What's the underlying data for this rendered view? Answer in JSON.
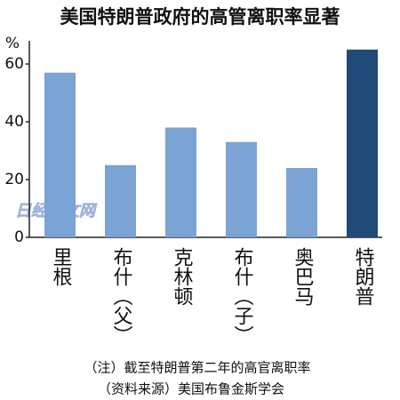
{
  "chart_data": {
    "type": "bar",
    "title": "美国特朗普政府的高管离职率显著",
    "y_unit": "%",
    "categories": [
      "里根",
      "布什（父）",
      "克林顿",
      "布什（子）",
      "奥巴马",
      "特朗普"
    ],
    "values": [
      57,
      25,
      38,
      33,
      24,
      65
    ],
    "colors": [
      "#7ba3d3",
      "#7ba3d3",
      "#7ba3d3",
      "#7ba3d3",
      "#7ba3d3",
      "#1f4a78"
    ],
    "ylim": [
      0,
      68
    ],
    "yticks": [
      0,
      20,
      40,
      60
    ],
    "grid": false,
    "watermark": "日经中文网",
    "notes": [
      "（注）截至特朗普第二年的高官离职率",
      "（资料来源）美国布鲁金斯学会"
    ]
  }
}
